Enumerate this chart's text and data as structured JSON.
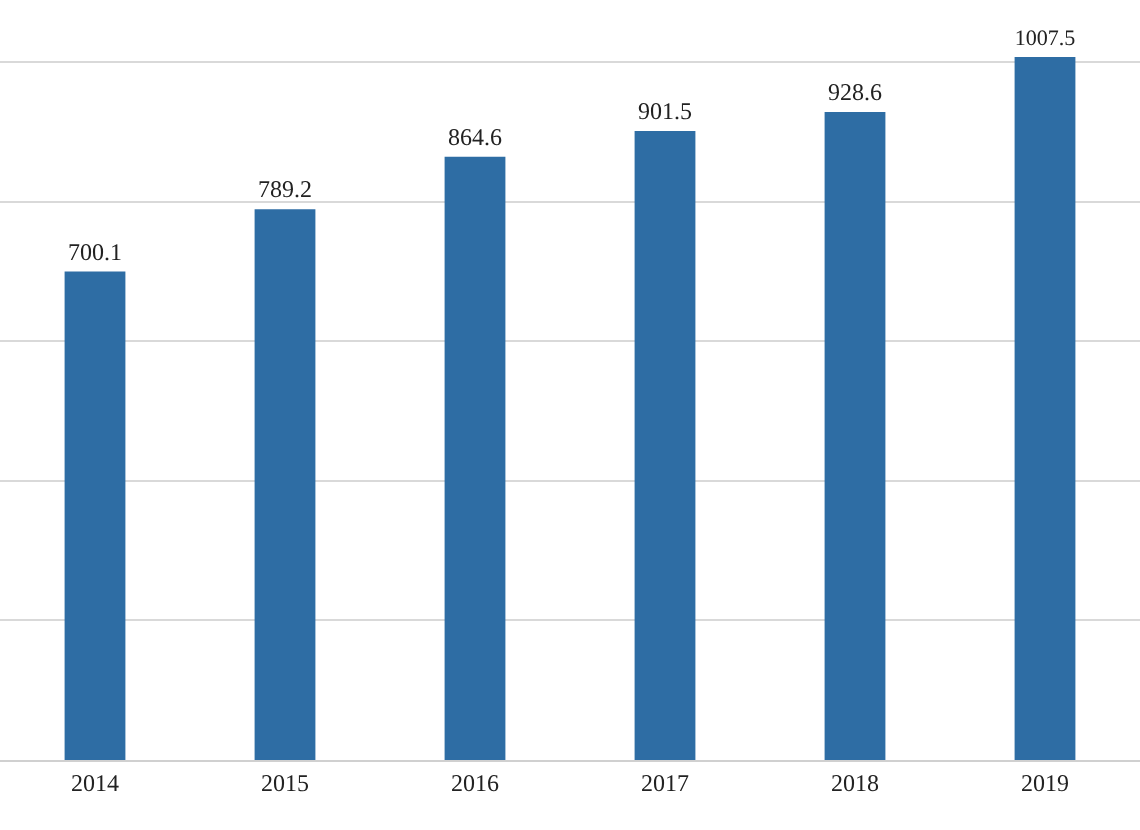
{
  "chart_data": {
    "type": "bar",
    "categories": [
      "2014",
      "2015",
      "2016",
      "2017",
      "2018",
      "2019"
    ],
    "values": [
      700.1,
      789.2,
      864.6,
      901.5,
      928.6,
      1007.5
    ],
    "color": "#2e6da4",
    "data_labels": true,
    "yticks": [
      {
        "value": 0,
        "label": null
      },
      {
        "value": 200,
        "label": null
      },
      {
        "value": 400,
        "label": null
      },
      {
        "value": 600,
        "label": null
      },
      {
        "value": 800,
        "label": null
      },
      {
        "value": 1000,
        "label": null
      }
    ],
    "tick_labels": "x",
    "grid": "y",
    "legend": false
  }
}
